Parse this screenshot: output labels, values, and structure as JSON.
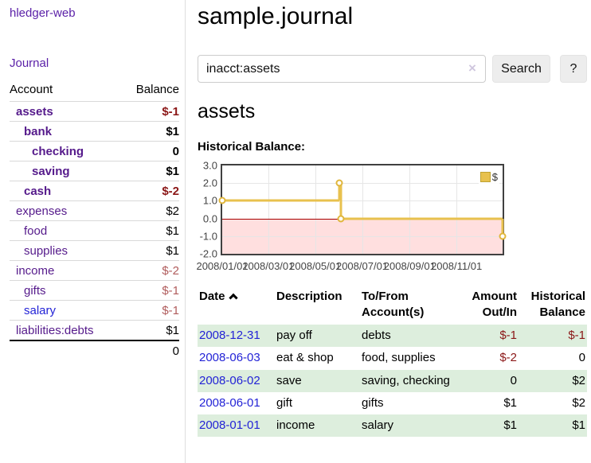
{
  "app": {
    "title": "hledger-web"
  },
  "colors": {
    "link_purple": "#551a8b",
    "link_blue": "#2323d6",
    "negative_strong": "#8b1717",
    "negative_soft": "#b05c5c",
    "stripe_green": "#ddeedd",
    "chart_gold": "#e8c14e",
    "negative_region_pink": "#ffdfdf",
    "zero_line_red": "#a80000"
  },
  "sidebar": {
    "journal_link": "Journal",
    "accounts": {
      "headers": {
        "account": "Account",
        "balance": "Balance"
      },
      "rows": [
        {
          "name": "assets",
          "level": 1,
          "bold": true,
          "balance": "$-1",
          "negative": "strong"
        },
        {
          "name": "bank",
          "level": 2,
          "bold": true,
          "balance": "$1"
        },
        {
          "name": "checking",
          "level": 3,
          "bold": true,
          "balance": "0"
        },
        {
          "name": "saving",
          "level": 3,
          "bold": true,
          "balance": "$1"
        },
        {
          "name": "cash",
          "level": 2,
          "bold": true,
          "balance": "$-2",
          "negative": "strong"
        },
        {
          "name": "expenses",
          "level": 1,
          "balance": "$2"
        },
        {
          "name": "food",
          "level": 2,
          "balance": "$1"
        },
        {
          "name": "supplies",
          "level": 2,
          "balance": "$1"
        },
        {
          "name": "income",
          "level": 1,
          "balance": "$-2",
          "negative": "soft"
        },
        {
          "name": "gifts",
          "level": 2,
          "balance": "$-1",
          "negative": "soft"
        },
        {
          "name": "salary",
          "level": 2,
          "balance": "$-1",
          "negative": "soft",
          "link_color": "blue"
        },
        {
          "name": "liabilities:debts",
          "level": 1,
          "balance": "$1"
        }
      ],
      "total": "0"
    }
  },
  "main": {
    "title": "sample.journal",
    "search": {
      "value": "inacct:assets",
      "clear_icon": "×",
      "button_label": "Search",
      "help_label": "?"
    },
    "section_title": "assets",
    "chart_label": "Historical Balance:",
    "chart_data": {
      "type": "line",
      "title": "Historical Balance",
      "step": true,
      "series": [
        {
          "name": "$",
          "color": "#e8c14e",
          "points": [
            [
              "2008-01-01",
              1
            ],
            [
              "2008-06-01",
              2
            ],
            [
              "2008-06-03",
              0
            ],
            [
              "2008-12-31",
              -1
            ]
          ]
        }
      ],
      "xrange": [
        "2008-01-01",
        "2008-12-31"
      ],
      "ylim": [
        -2,
        3
      ],
      "yticks": [
        "3.0",
        "2.0",
        "1.0",
        "0.0",
        "-1.0",
        "-2.0"
      ],
      "xticks": [
        "2008/01/01",
        "2008/03/01",
        "2008/05/01",
        "2008/07/01",
        "2008/09/01",
        "2008/11/01"
      ],
      "legend": {
        "position": "top-right",
        "label": "$"
      },
      "grid": true,
      "negative_region": true
    },
    "register": {
      "headers": {
        "date": "Date",
        "sort_icon": "chevron-up",
        "description": "Description",
        "accounts": "To/From Account(s)",
        "amount": "Amount Out/In",
        "balance": "Historical Balance"
      },
      "rows": [
        {
          "date": "2008-12-31",
          "description": "pay off",
          "accounts": "debts",
          "amount": "$-1",
          "amount_negative": true,
          "balance": "$-1",
          "balance_negative": true
        },
        {
          "date": "2008-06-03",
          "description": "eat & shop",
          "accounts": "food, supplies",
          "amount": "$-2",
          "amount_negative": true,
          "balance": "0"
        },
        {
          "date": "2008-06-02",
          "description": "save",
          "accounts": "saving, checking",
          "amount": "0",
          "balance": "$2"
        },
        {
          "date": "2008-06-01",
          "description": "gift",
          "accounts": "gifts",
          "amount": "$1",
          "balance": "$2"
        },
        {
          "date": "2008-01-01",
          "description": "income",
          "accounts": "salary",
          "amount": "$1",
          "balance": "$1"
        }
      ]
    }
  }
}
